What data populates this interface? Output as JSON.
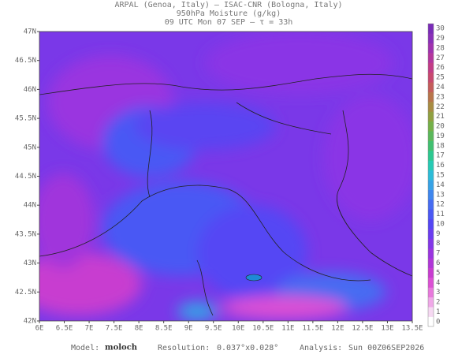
{
  "header": {
    "line1": "ARPAL (Genoa, Italy)  –  ISAC-CNR (Bologna, Italy)",
    "line2": "950hPa Moisture (g/kg)",
    "line3": "09 UTC Mon 07 SEP  –  τ = 33h"
  },
  "lat_ticks": [
    "47N",
    "46.5N",
    "46N",
    "45.5N",
    "45N",
    "44.5N",
    "44N",
    "43.5N",
    "43N",
    "42.5N",
    "42N"
  ],
  "lon_ticks": [
    "6E",
    "6.5E",
    "7E",
    "7.5E",
    "8E",
    "8.5E",
    "9E",
    "9.5E",
    "10E",
    "10.5E",
    "11E",
    "11.5E",
    "12E",
    "12.5E",
    "13E",
    "13.5E"
  ],
  "colorbar": {
    "labels": [
      0,
      1,
      2,
      3,
      4,
      5,
      6,
      7,
      8,
      9,
      10,
      11,
      12,
      13,
      14,
      15,
      16,
      17,
      18,
      19,
      20,
      21,
      22,
      23,
      24,
      25,
      26,
      27,
      28,
      29,
      30
    ],
    "colors": [
      "#ffffff",
      "#f6d9f2",
      "#f0a8e8",
      "#e878dc",
      "#dc50d4",
      "#c83cd0",
      "#b036d8",
      "#9a34e0",
      "#8236e8",
      "#6a3cf0",
      "#5446f4",
      "#4a58f4",
      "#466cf2",
      "#3e86ee",
      "#36a2e6",
      "#2cbcd8",
      "#26cab4",
      "#2cc890",
      "#40c070",
      "#5ab85a",
      "#74b048",
      "#90a040",
      "#a88c42",
      "#b8744a",
      "#c45c5a",
      "#c8486e",
      "#c23c86",
      "#b4369c",
      "#a032ae",
      "#8a30b8",
      "#7a2cb8"
    ]
  },
  "footer": {
    "model_label": "Model:",
    "model": "moloch",
    "resolution_label": "Resolution:",
    "resolution": "0.037°x0.028°",
    "analysis_label": "Analysis:",
    "analysis": "Sun 00Z06SEP2026"
  }
}
